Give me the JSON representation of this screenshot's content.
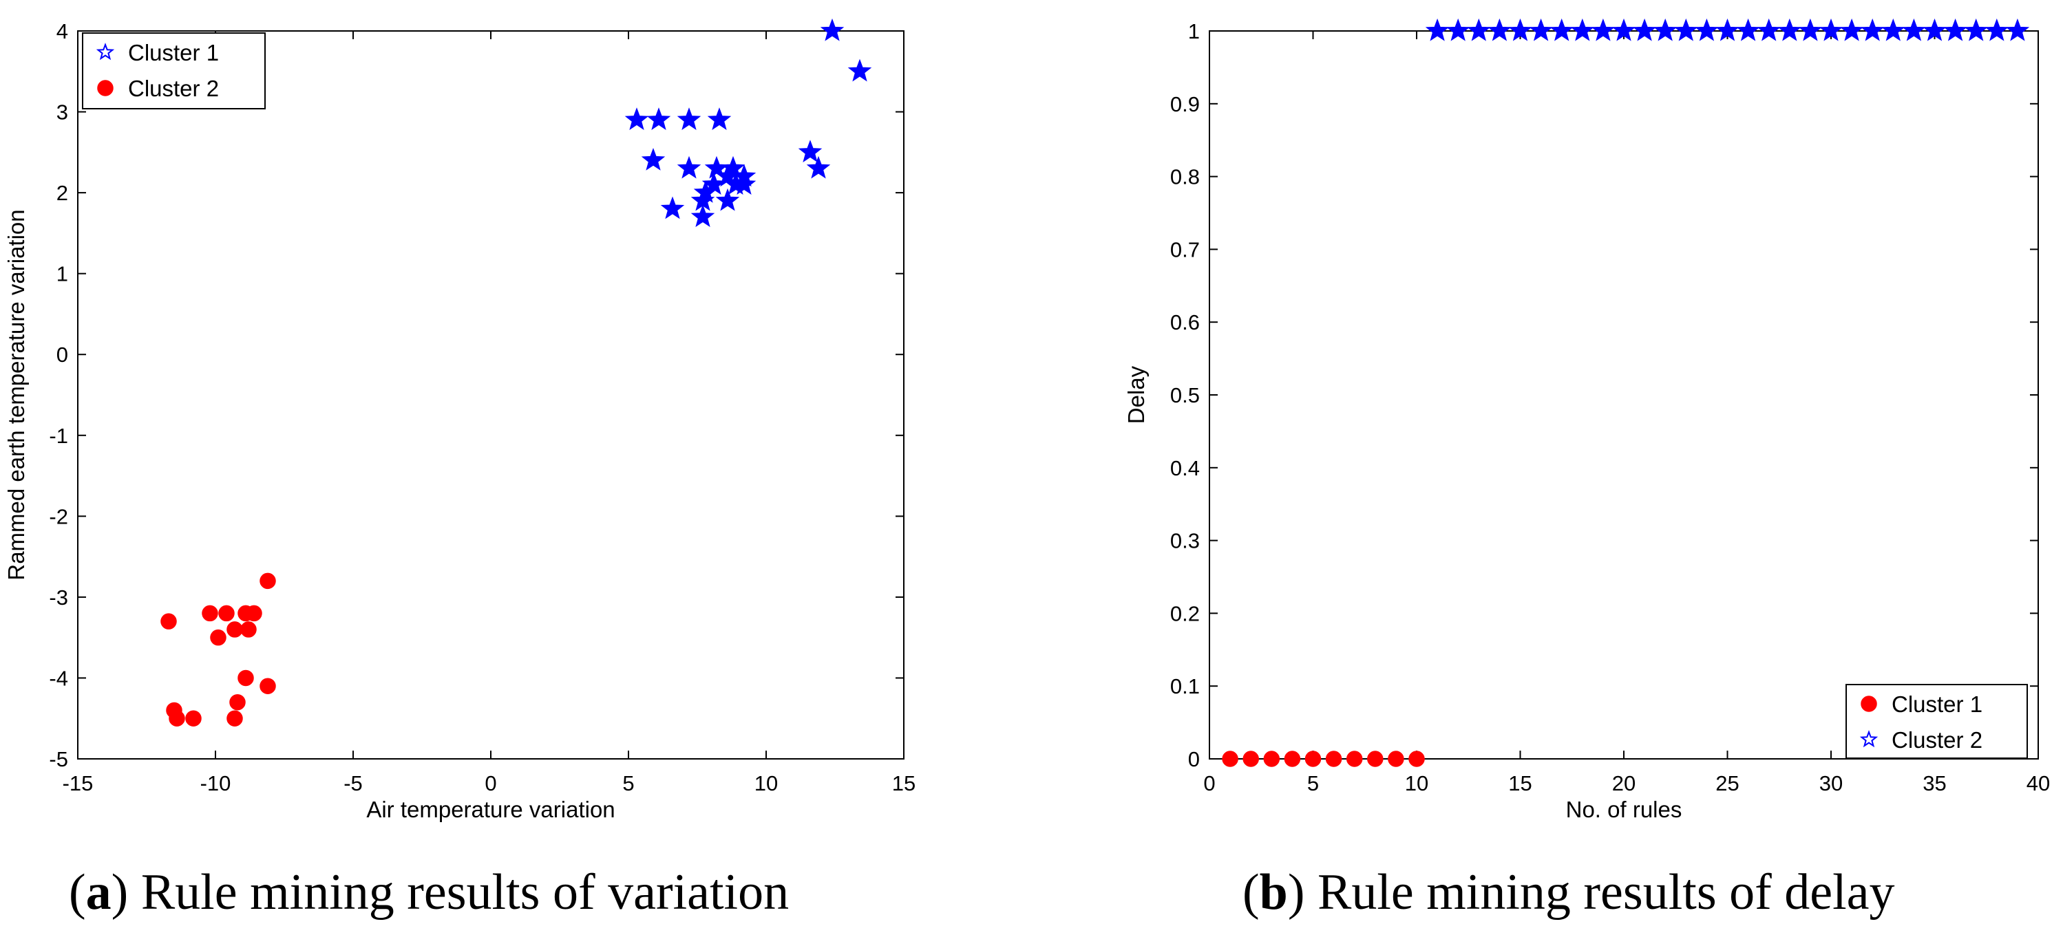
{
  "figure": {
    "captions": [
      {
        "label": "a",
        "text": "Rule mining results of variation"
      },
      {
        "label": "b",
        "text": "Rule mining results of delay"
      }
    ]
  },
  "colors": {
    "cluster_blue": "#0000ff",
    "cluster_red": "#ff0000",
    "axis": "#000000"
  },
  "chart_data": [
    {
      "type": "scatter",
      "title": "",
      "xlabel": "Air temperature variation",
      "ylabel": "Rammed earth temperature variation",
      "xlim": [
        -15,
        15
      ],
      "ylim": [
        -5,
        4
      ],
      "xticks": [
        -15,
        -10,
        -5,
        0,
        5,
        10,
        15
      ],
      "yticks": [
        -5,
        -4,
        -3,
        -2,
        -1,
        0,
        1,
        2,
        3,
        4
      ],
      "grid": false,
      "legend_position": "top-left",
      "series": [
        {
          "name": "Cluster 1",
          "marker": "star",
          "color": "#0000ff",
          "x": [
            5.3,
            6.1,
            7.2,
            8.3,
            12.4,
            13.4,
            5.9,
            7.2,
            8.2,
            8.8,
            9.2,
            8.6,
            8.1,
            7.8,
            6.6,
            7.7,
            8.6,
            9.2,
            11.6,
            11.9,
            8.9,
            7.7
          ],
          "y": [
            2.9,
            2.9,
            2.9,
            2.9,
            4.0,
            3.5,
            2.4,
            2.3,
            2.3,
            2.3,
            2.1,
            2.2,
            2.1,
            2.0,
            1.8,
            1.9,
            1.9,
            2.2,
            2.5,
            2.3,
            2.1,
            1.7
          ]
        },
        {
          "name": "Cluster 2",
          "marker": "circle",
          "color": "#ff0000",
          "x": [
            -8.1,
            -11.7,
            -10.2,
            -9.6,
            -8.9,
            -8.6,
            -9.9,
            -9.3,
            -8.8,
            -8.9,
            -8.1,
            -11.5,
            -11.4,
            -10.8,
            -9.2,
            -9.3
          ],
          "y": [
            -2.8,
            -3.3,
            -3.2,
            -3.2,
            -3.2,
            -3.2,
            -3.5,
            -3.4,
            -3.4,
            -4.0,
            -4.1,
            -4.4,
            -4.5,
            -4.5,
            -4.3,
            -4.5
          ]
        }
      ]
    },
    {
      "type": "scatter",
      "title": "",
      "xlabel": "No. of rules",
      "ylabel": "Delay",
      "xlim": [
        0,
        40
      ],
      "ylim": [
        0,
        1
      ],
      "xticks": [
        0,
        5,
        10,
        15,
        20,
        25,
        30,
        35,
        40
      ],
      "yticks": [
        0,
        0.1,
        0.2,
        0.3,
        0.4,
        0.5,
        0.6,
        0.7,
        0.8,
        0.9,
        1
      ],
      "grid": false,
      "legend_position": "bottom-right",
      "series": [
        {
          "name": "Cluster 1",
          "marker": "circle",
          "color": "#ff0000",
          "x": [
            1,
            2,
            3,
            4,
            5,
            6,
            7,
            8,
            9,
            10
          ],
          "y": [
            0,
            0,
            0,
            0,
            0,
            0,
            0,
            0,
            0,
            0
          ]
        },
        {
          "name": "Cluster 2",
          "marker": "star",
          "color": "#0000ff",
          "x": [
            11,
            12,
            13,
            14,
            15,
            16,
            17,
            18,
            19,
            20,
            21,
            22,
            23,
            24,
            25,
            26,
            27,
            28,
            29,
            30,
            31,
            32,
            33,
            34,
            35,
            36,
            37,
            38,
            39
          ],
          "y": [
            1,
            1,
            1,
            1,
            1,
            1,
            1,
            1,
            1,
            1,
            1,
            1,
            1,
            1,
            1,
            1,
            1,
            1,
            1,
            1,
            1,
            1,
            1,
            1,
            1,
            1,
            1,
            1,
            1
          ]
        }
      ]
    }
  ]
}
